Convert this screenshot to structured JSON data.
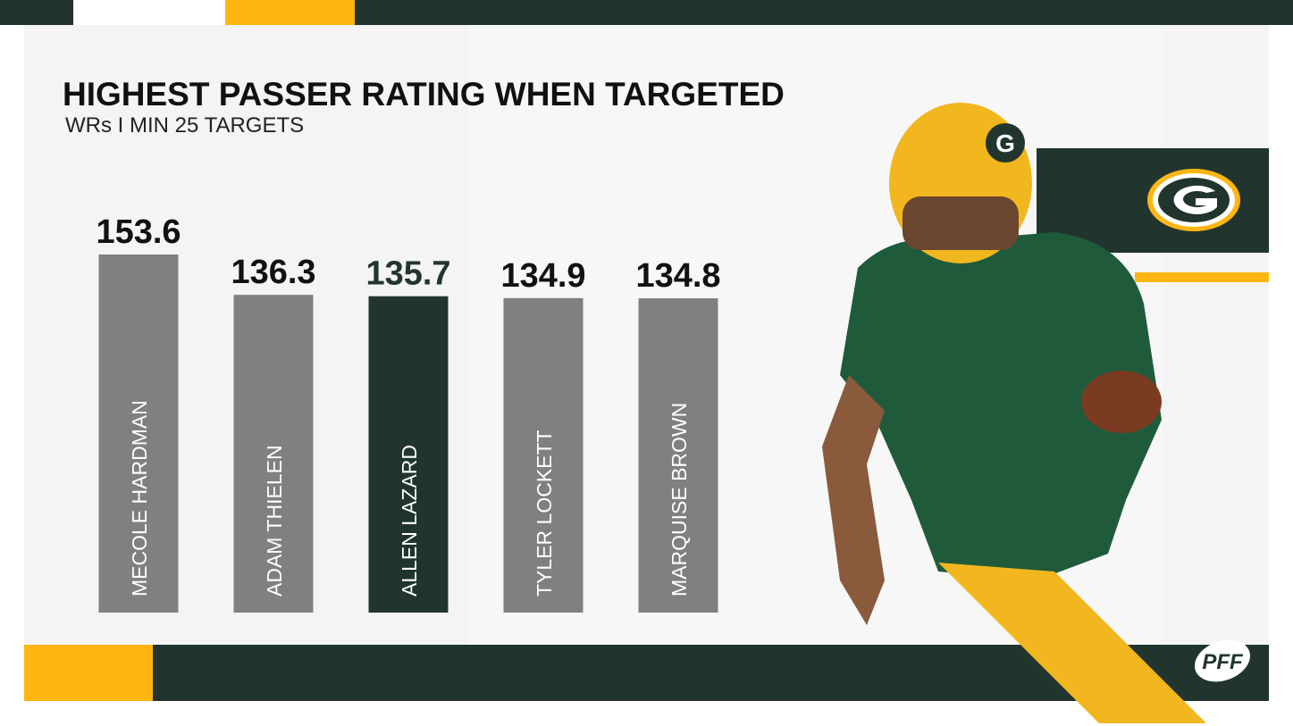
{
  "chart_data": {
    "type": "bar",
    "title": "HIGHEST PASSER RATING WHEN TARGETED",
    "subtitle": "WRs I MIN 25 TARGETS",
    "categories": [
      "MECOLE HARDMAN",
      "ADAM THIELEN",
      "ALLEN LAZARD",
      "TYLER LOCKETT",
      "MARQUISE BROWN"
    ],
    "values": [
      153.6,
      136.3,
      135.7,
      134.9,
      134.8
    ],
    "color": "#808080",
    "colors": [
      "#808080",
      "#808080",
      "#21352e",
      "#808080",
      "#808080"
    ],
    "brand": "PFF"
  }
}
